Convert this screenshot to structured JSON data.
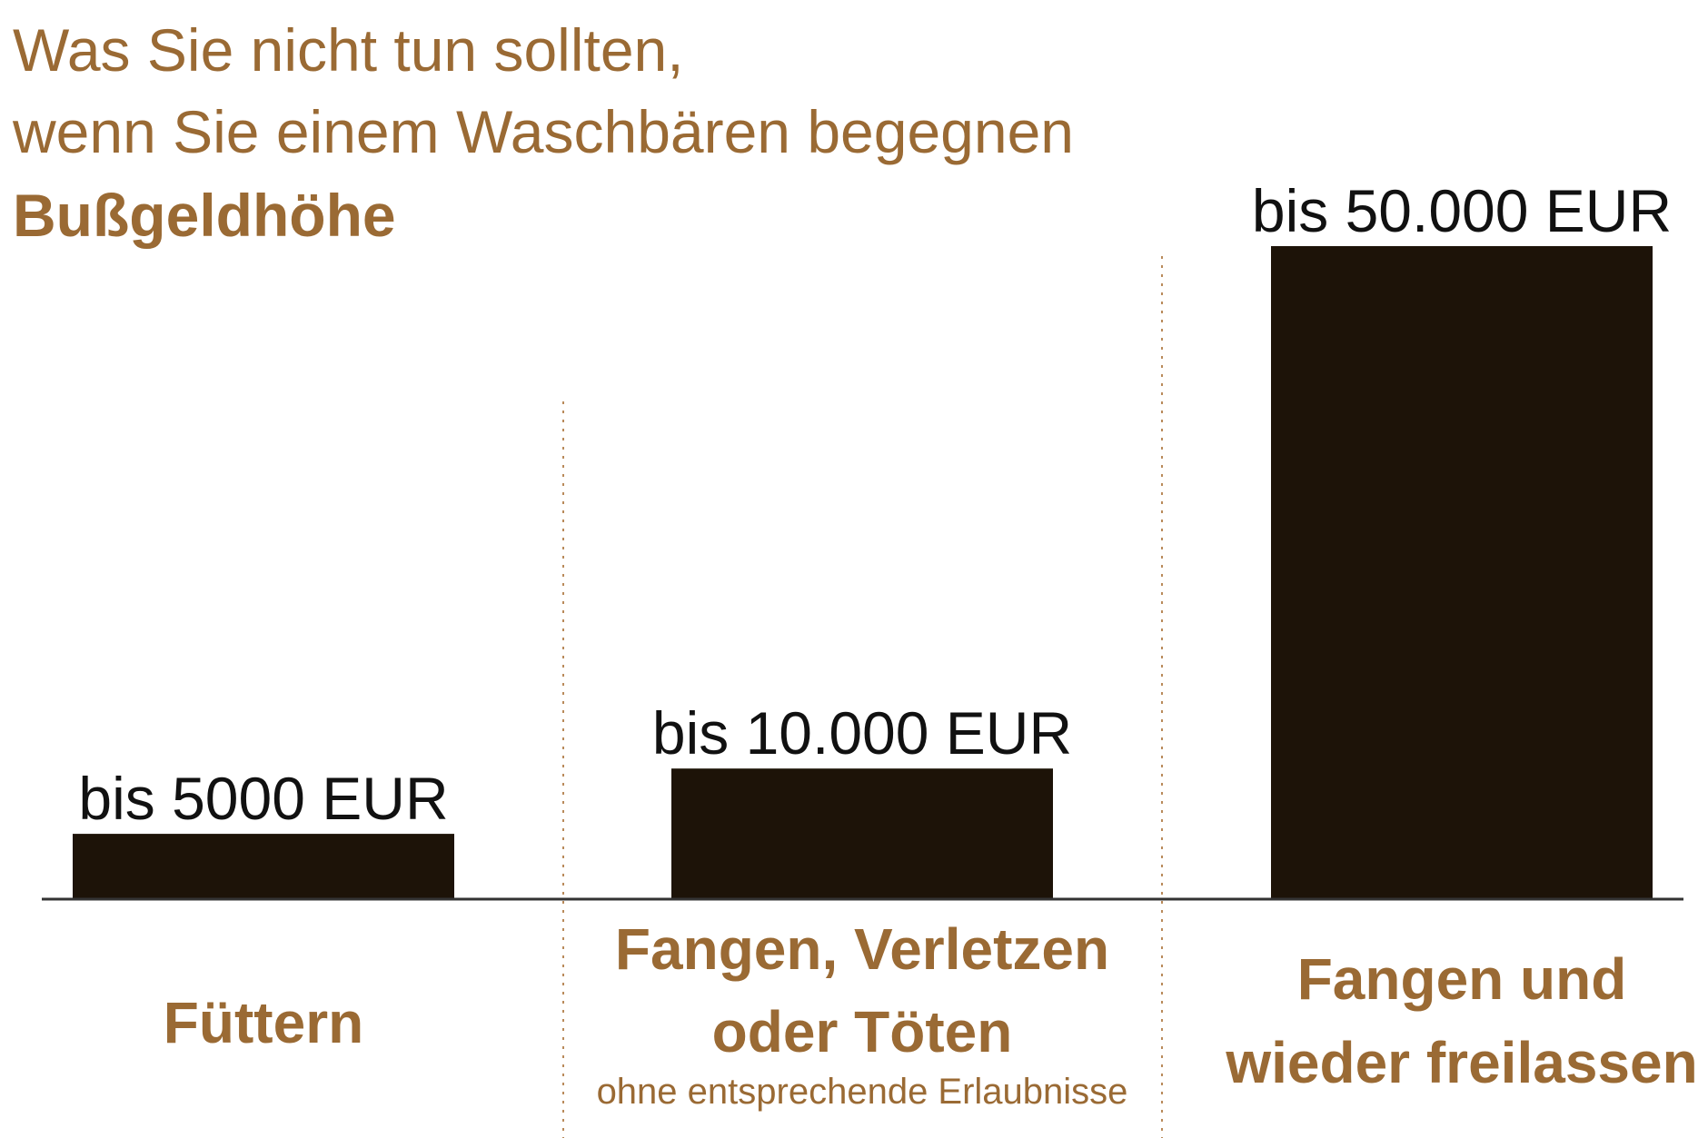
{
  "colors": {
    "title": "#9a6a34",
    "bar": "#1d1308",
    "value_label": "#111111",
    "category": "#9a6a34",
    "divider": "#b98a5a",
    "baseline": "#333333"
  },
  "chart_data": {
    "type": "bar",
    "title_lines": [
      "Was Sie nicht tun sollten,",
      "wenn Sie einem Waschbären begegnen"
    ],
    "subtitle": "Bußgeldhöhe",
    "unit": "EUR",
    "ylim": [
      0,
      50000
    ],
    "grid": false,
    "legend": "none",
    "categories": [
      {
        "lines": [
          "Füttern"
        ],
        "note": ""
      },
      {
        "lines": [
          "Fangen, Verletzen",
          "oder Töten"
        ],
        "note": "ohne entsprechende Erlaubnisse"
      },
      {
        "lines": [
          "Fangen und",
          "wieder freilassen"
        ],
        "note": ""
      }
    ],
    "values": [
      5000,
      10000,
      50000
    ],
    "value_labels": [
      "bis 5000 EUR",
      "bis 10.000 EUR",
      "bis 50.000 EUR"
    ]
  }
}
